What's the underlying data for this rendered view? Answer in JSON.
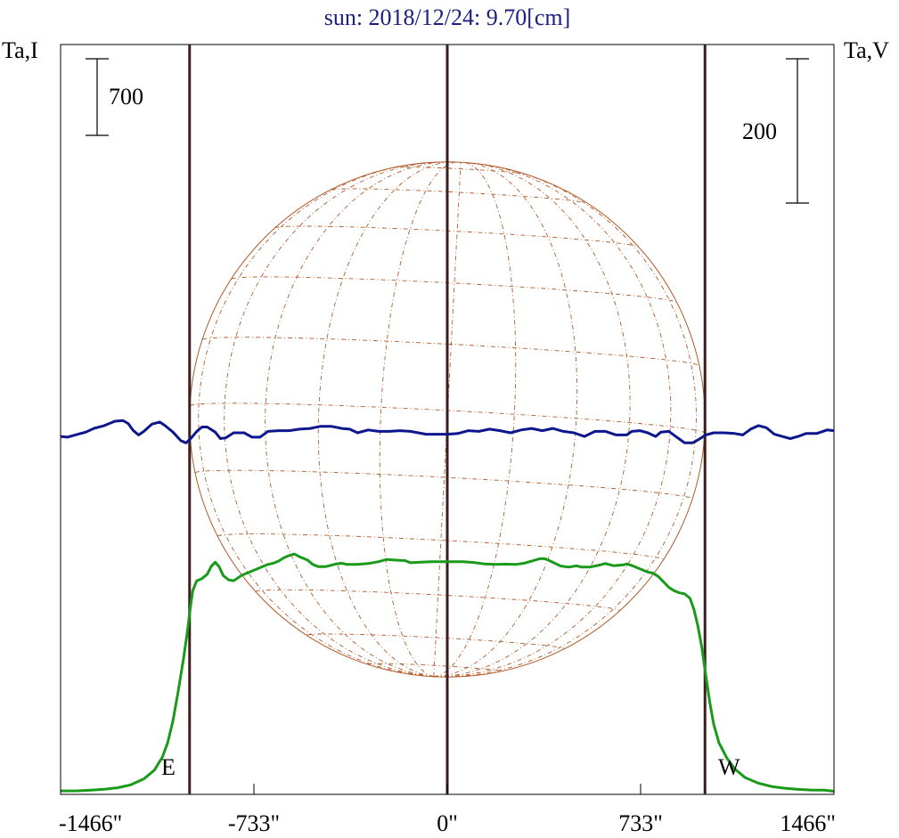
{
  "chart_data": {
    "type": "line",
    "title": "sun: 2018/12/24: 9.70[cm]",
    "left_axis_label": "Ta,I",
    "right_axis_label": "Ta,V",
    "left_scale_bar_label": "700",
    "right_scale_bar_label": "200",
    "left_scale_bar_value": 700,
    "right_scale_bar_value": 200,
    "x_tick_labels": [
      "-1466\"",
      "-733\"",
      "0\"",
      "733\"",
      "1466\""
    ],
    "x_ticks": [
      -1466,
      -733,
      0,
      733,
      1466
    ],
    "xlim": [
      -1466,
      1466
    ],
    "limb_labels": {
      "east": "E",
      "west": "W"
    },
    "limb_positions": [
      -977,
      977
    ],
    "series": [
      {
        "name": "I",
        "color": "#1a9a1a",
        "points": [
          [
            -1466,
            40
          ],
          [
            -1400,
            41
          ],
          [
            -1350,
            47
          ],
          [
            -1300,
            55
          ],
          [
            -1250,
            68
          ],
          [
            -1200,
            95
          ],
          [
            -1150,
            150
          ],
          [
            -1110,
            230
          ],
          [
            -1080,
            350
          ],
          [
            -1060,
            480
          ],
          [
            -1040,
            680
          ],
          [
            -1020,
            950
          ],
          [
            -1000,
            1250
          ],
          [
            -985,
            1500
          ],
          [
            -975,
            1700
          ],
          [
            -965,
            1870
          ],
          [
            -950,
            1960
          ],
          [
            -930,
            1980
          ],
          [
            -910,
            2020
          ],
          [
            -895,
            2090
          ],
          [
            -880,
            2130
          ],
          [
            -865,
            2090
          ],
          [
            -850,
            2010
          ],
          [
            -830,
            1970
          ],
          [
            -810,
            1960
          ],
          [
            -780,
            2010
          ],
          [
            -750,
            2040
          ],
          [
            -720,
            2070
          ],
          [
            -680,
            2110
          ],
          [
            -660,
            2120
          ],
          [
            -640,
            2140
          ],
          [
            -620,
            2170
          ],
          [
            -600,
            2190
          ],
          [
            -580,
            2205
          ],
          [
            -560,
            2180
          ],
          [
            -530,
            2150
          ],
          [
            -510,
            2110
          ],
          [
            -490,
            2090
          ],
          [
            -460,
            2090
          ],
          [
            -420,
            2115
          ],
          [
            -400,
            2120
          ],
          [
            -380,
            2110
          ],
          [
            -340,
            2110
          ],
          [
            -300,
            2118
          ],
          [
            -260,
            2135
          ],
          [
            -230,
            2155
          ],
          [
            -200,
            2150
          ],
          [
            -160,
            2145
          ],
          [
            -140,
            2125
          ],
          [
            -100,
            2130
          ],
          [
            -60,
            2135
          ],
          [
            0,
            2135
          ],
          [
            60,
            2135
          ],
          [
            100,
            2128
          ],
          [
            140,
            2115
          ],
          [
            180,
            2110
          ],
          [
            220,
            2112
          ],
          [
            260,
            2110
          ],
          [
            290,
            2120
          ],
          [
            320,
            2140
          ],
          [
            350,
            2162
          ],
          [
            370,
            2162
          ],
          [
            400,
            2130
          ],
          [
            430,
            2095
          ],
          [
            460,
            2085
          ],
          [
            490,
            2097
          ],
          [
            510,
            2085
          ],
          [
            540,
            2085
          ],
          [
            570,
            2100
          ],
          [
            600,
            2118
          ],
          [
            630,
            2098
          ],
          [
            665,
            2105
          ],
          [
            680,
            2114
          ],
          [
            700,
            2100
          ],
          [
            730,
            2070
          ],
          [
            760,
            2040
          ],
          [
            780,
            2030
          ],
          [
            800,
            2000
          ],
          [
            820,
            1950
          ],
          [
            840,
            1900
          ],
          [
            860,
            1870
          ],
          [
            880,
            1850
          ],
          [
            900,
            1840
          ],
          [
            920,
            1800
          ],
          [
            935,
            1700
          ],
          [
            950,
            1550
          ],
          [
            965,
            1350
          ],
          [
            980,
            1100
          ],
          [
            995,
            850
          ],
          [
            1010,
            650
          ],
          [
            1030,
            480
          ],
          [
            1060,
            340
          ],
          [
            1090,
            240
          ],
          [
            1130,
            160
          ],
          [
            1180,
            110
          ],
          [
            1230,
            80
          ],
          [
            1280,
            64
          ],
          [
            1330,
            54
          ],
          [
            1380,
            48
          ],
          [
            1430,
            46
          ],
          [
            1466,
            37
          ]
        ]
      },
      {
        "name": "V",
        "color": "#0d168c",
        "points": [
          [
            -1466,
            -5
          ],
          [
            -1440,
            -6
          ],
          [
            -1400,
            -2
          ],
          [
            -1370,
            1
          ],
          [
            -1340,
            6
          ],
          [
            -1300,
            10
          ],
          [
            -1260,
            16
          ],
          [
            -1230,
            17
          ],
          [
            -1210,
            13
          ],
          [
            -1190,
            3
          ],
          [
            -1170,
            -3
          ],
          [
            -1150,
            2
          ],
          [
            -1120,
            12
          ],
          [
            -1090,
            15
          ],
          [
            -1070,
            10
          ],
          [
            -1040,
            1
          ],
          [
            -1010,
            -11
          ],
          [
            -990,
            -14
          ],
          [
            -970,
            -7
          ],
          [
            -950,
            2
          ],
          [
            -930,
            8
          ],
          [
            -910,
            8
          ],
          [
            -880,
            1
          ],
          [
            -860,
            -8
          ],
          [
            -840,
            -7
          ],
          [
            -810,
            0
          ],
          [
            -770,
            0
          ],
          [
            -740,
            -6
          ],
          [
            -710,
            -6
          ],
          [
            -680,
            2
          ],
          [
            -640,
            3
          ],
          [
            -600,
            3
          ],
          [
            -560,
            5
          ],
          [
            -520,
            6
          ],
          [
            -480,
            9
          ],
          [
            -440,
            9
          ],
          [
            -400,
            6
          ],
          [
            -370,
            5
          ],
          [
            -340,
            0
          ],
          [
            -300,
            4
          ],
          [
            -260,
            2
          ],
          [
            -220,
            2
          ],
          [
            -180,
            3
          ],
          [
            -140,
            2
          ],
          [
            -80,
            -2
          ],
          [
            -40,
            -2
          ],
          [
            0,
            -2
          ],
          [
            40,
            -1
          ],
          [
            80,
            3
          ],
          [
            120,
            2
          ],
          [
            160,
            5
          ],
          [
            200,
            3
          ],
          [
            240,
            0
          ],
          [
            280,
            4
          ],
          [
            320,
            6
          ],
          [
            360,
            3
          ],
          [
            400,
            6
          ],
          [
            440,
            2
          ],
          [
            480,
            0
          ],
          [
            520,
            -5
          ],
          [
            560,
            2
          ],
          [
            600,
            2
          ],
          [
            640,
            -3
          ],
          [
            680,
            -3
          ],
          [
            700,
            2
          ],
          [
            730,
            3
          ],
          [
            760,
            0
          ],
          [
            790,
            -5
          ],
          [
            810,
            1
          ],
          [
            840,
            2
          ],
          [
            870,
            -6
          ],
          [
            900,
            -14
          ],
          [
            930,
            -14
          ],
          [
            950,
            -10
          ],
          [
            980,
            -3
          ],
          [
            1010,
            0
          ],
          [
            1050,
            0
          ],
          [
            1090,
            -1
          ],
          [
            1120,
            -3
          ],
          [
            1150,
            5
          ],
          [
            1180,
            10
          ],
          [
            1210,
            7
          ],
          [
            1240,
            -2
          ],
          [
            1270,
            -5
          ],
          [
            1300,
            -8
          ],
          [
            1330,
            -5
          ],
          [
            1360,
            -1
          ],
          [
            1400,
            -1
          ],
          [
            1440,
            4
          ],
          [
            1466,
            3
          ]
        ]
      }
    ],
    "colors": {
      "title": "#1e2080",
      "limb_lines": "#3c1e1e",
      "disk_grid": "#b25a28",
      "axes": "#000000"
    }
  }
}
